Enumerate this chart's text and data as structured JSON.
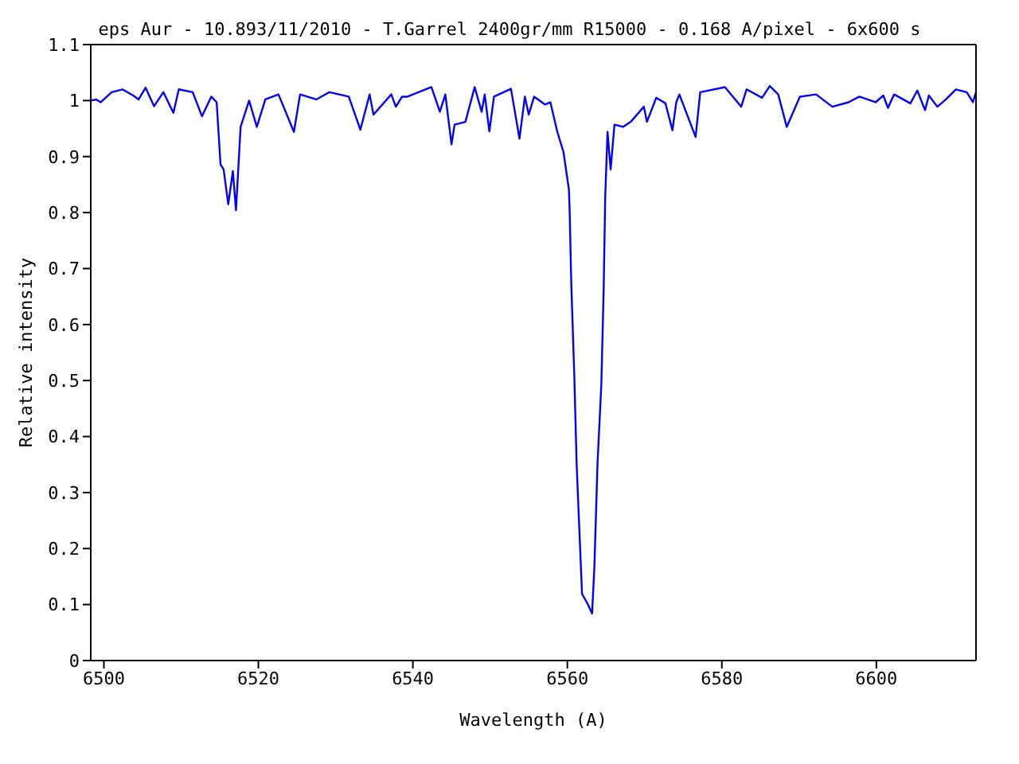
{
  "chart_data": {
    "type": "line",
    "title": "eps Aur - 10.893/11/2010 - T.Garrel 2400gr/mm R15000 - 0.168 A/pixel - 6x600 s",
    "xlabel": "Wavelength (A)",
    "ylabel": "Relative intensity",
    "xlim": [
      6498.3,
      6612.9
    ],
    "xticks": [
      6500,
      6520,
      6540,
      6560,
      6580,
      6600
    ],
    "ylim": [
      0,
      1.1
    ],
    "yticks": [
      0,
      0.1,
      0.2,
      0.3,
      0.4,
      0.5,
      0.6,
      0.7,
      0.8,
      0.9,
      1,
      1.1
    ],
    "marker": "none",
    "line_style": "solid",
    "series": [
      {
        "color": "#0000ff",
        "x": [
          6498.3,
          6499.0,
          6499.6,
          6501.0,
          6502.4,
          6503.8,
          6504.5,
          6505.4,
          6506.5,
          6507.7,
          6509.0,
          6509.7,
          6511.5,
          6512.7,
          6513.9,
          6514.6,
          6515.1,
          6515.5,
          6516.1,
          6516.7,
          6517.1,
          6517.7,
          6518.8,
          6519.8,
          6520.9,
          6522.6,
          6524.6,
          6525.4,
          6527.5,
          6529.2,
          6531.7,
          6533.2,
          6534.4,
          6534.9,
          6537.2,
          6537.8,
          6538.6,
          6539.3,
          6542.4,
          6543.5,
          6544.2,
          6545.0,
          6545.4,
          6546.8,
          6548.0,
          6548.9,
          6549.3,
          6549.9,
          6550.5,
          6552.7,
          6553.8,
          6554.5,
          6555.0,
          6555.7,
          6557.1,
          6557.8,
          6558.7,
          6559.5,
          6560.2,
          6560.3,
          6560.5,
          6560.9,
          6561.2,
          6561.6,
          6561.9,
          6562.6,
          6563.2,
          6563.5,
          6563.9,
          6564.4,
          6564.7,
          6564.9,
          6565.2,
          6565.6,
          6566.1,
          6567.2,
          6568.2,
          6569.9,
          6570.3,
          6571.5,
          6572.7,
          6573.6,
          6574.1,
          6574.5,
          6576.6,
          6577.2,
          6580.4,
          6582.5,
          6583.2,
          6585.2,
          6586.2,
          6587.3,
          6588.4,
          6590.1,
          6592.2,
          6594.3,
          6596.4,
          6597.8,
          6599.9,
          6600.9,
          6601.5,
          6602.3,
          6604.4,
          6605.3,
          6606.3,
          6606.8,
          6607.9,
          6609.0,
          6610.3,
          6611.7,
          6612.5,
          6612.9
        ],
        "values": [
          1.0,
          1.002,
          0.997,
          1.015,
          1.02,
          1.009,
          1.002,
          1.023,
          0.99,
          1.015,
          0.978,
          1.02,
          1.015,
          0.972,
          1.007,
          0.997,
          0.886,
          0.877,
          0.815,
          0.874,
          0.804,
          0.953,
          1.0,
          0.953,
          1.002,
          1.011,
          0.944,
          1.011,
          1.002,
          1.015,
          1.007,
          0.948,
          1.011,
          0.975,
          1.011,
          0.989,
          1.007,
          1.007,
          1.024,
          0.98,
          1.011,
          0.922,
          0.957,
          0.962,
          1.024,
          0.98,
          1.011,
          0.945,
          1.007,
          1.021,
          0.932,
          1.007,
          0.975,
          1.007,
          0.993,
          0.997,
          0.944,
          0.908,
          0.841,
          0.801,
          0.676,
          0.507,
          0.351,
          0.217,
          0.119,
          0.102,
          0.084,
          0.168,
          0.351,
          0.494,
          0.663,
          0.828,
          0.944,
          0.877,
          0.957,
          0.953,
          0.962,
          0.989,
          0.962,
          1.005,
          0.995,
          0.947,
          0.997,
          1.011,
          0.935,
          1.015,
          1.024,
          0.989,
          1.02,
          1.005,
          1.026,
          1.011,
          0.953,
          1.007,
          1.011,
          0.989,
          0.997,
          1.007,
          0.997,
          1.009,
          0.987,
          1.011,
          0.995,
          1.018,
          0.983,
          1.009,
          0.989,
          1.002,
          1.02,
          1.015,
          0.997,
          1.015
        ]
      }
    ]
  }
}
